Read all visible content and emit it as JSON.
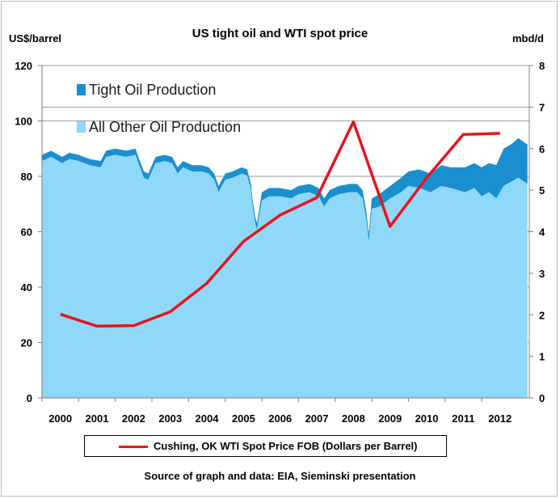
{
  "title": "US tight oil and WTI spot price",
  "y_left_unit": "US$/barrel",
  "y_right_unit": "mbd/d",
  "source": "Source of graph and data: EIA, Sieminski presentation",
  "colors": {
    "tight_oil": "#1a8fd0",
    "other_oil": "#8fd8fa",
    "wti": "#e8141a"
  },
  "chart_data": {
    "type": "area",
    "title": "US tight oil and WTI spot price",
    "xlabel": "",
    "ylabel_left": "US$/barrel",
    "ylabel_right": "mbd/d",
    "ylim_left": [
      0,
      120
    ],
    "ylim_right": [
      0,
      8
    ],
    "yticks_left": [
      "0",
      "20",
      "40",
      "60",
      "80",
      "100",
      "120"
    ],
    "yticks_right": [
      "0",
      "1",
      "2",
      "3",
      "4",
      "5",
      "6",
      "7",
      "8"
    ],
    "x_categories": [
      "2000",
      "2001",
      "2002",
      "2003",
      "2004",
      "2005",
      "2006",
      "2007",
      "2008",
      "2009",
      "2010",
      "2011",
      "2012"
    ],
    "xlim": [
      2000.0,
      2013.3
    ],
    "grid": true,
    "inner_legend": [
      {
        "name": "Tight Oil Production",
        "color": "#1a8fd0"
      },
      {
        "name": "All Other Oil Production",
        "color": "#8fd8fa"
      }
    ],
    "series": [
      {
        "name": "All Other Oil Production",
        "axis": "right",
        "x": [
          2000.0,
          2000.25,
          2000.55,
          2000.75,
          2001.0,
          2001.3,
          2001.6,
          2001.75,
          2002.0,
          2002.3,
          2002.55,
          2002.65,
          2002.78,
          2002.9,
          2003.1,
          2003.35,
          2003.55,
          2003.7,
          2003.85,
          2004.1,
          2004.35,
          2004.55,
          2004.7,
          2004.82,
          2005.0,
          2005.2,
          2005.45,
          2005.6,
          2005.7,
          2005.75,
          2005.82,
          2005.87,
          2006.0,
          2006.2,
          2006.5,
          2006.8,
          2007.0,
          2007.3,
          2007.55,
          2007.7,
          2007.85,
          2008.1,
          2008.4,
          2008.6,
          2008.75,
          2008.85,
          2008.92,
          2009.0,
          2009.2,
          2009.5,
          2009.8,
          2010.0,
          2010.3,
          2010.6,
          2010.9,
          2011.15,
          2011.35,
          2011.55,
          2011.8,
          2012.0,
          2012.2,
          2012.4,
          2012.6,
          2012.8,
          2013.0,
          2013.25
        ],
        "values": [
          5.7,
          5.8,
          5.65,
          5.75,
          5.7,
          5.6,
          5.55,
          5.8,
          5.85,
          5.8,
          5.85,
          5.6,
          5.3,
          5.25,
          5.65,
          5.7,
          5.65,
          5.4,
          5.55,
          5.45,
          5.45,
          5.4,
          5.25,
          4.95,
          5.25,
          5.3,
          5.4,
          5.35,
          5.0,
          4.6,
          4.2,
          4.05,
          4.75,
          4.85,
          4.85,
          4.8,
          4.9,
          4.95,
          4.85,
          4.6,
          4.8,
          4.9,
          4.95,
          4.95,
          4.8,
          4.3,
          3.75,
          4.55,
          4.6,
          4.8,
          4.95,
          5.1,
          5.05,
          4.95,
          5.1,
          5.05,
          5.0,
          4.95,
          5.05,
          4.85,
          4.95,
          4.8,
          5.1,
          5.2,
          5.3,
          5.15
        ]
      },
      {
        "name": "Tight Oil Production",
        "axis": "right",
        "x": [
          2000.0,
          2000.25,
          2000.55,
          2000.75,
          2001.0,
          2001.3,
          2001.6,
          2001.75,
          2002.0,
          2002.3,
          2002.55,
          2002.65,
          2002.78,
          2002.9,
          2003.1,
          2003.35,
          2003.55,
          2003.7,
          2003.85,
          2004.1,
          2004.35,
          2004.55,
          2004.7,
          2004.82,
          2005.0,
          2005.2,
          2005.45,
          2005.6,
          2005.7,
          2005.75,
          2005.82,
          2005.87,
          2006.0,
          2006.2,
          2006.5,
          2006.8,
          2007.0,
          2007.3,
          2007.55,
          2007.7,
          2007.85,
          2008.1,
          2008.4,
          2008.6,
          2008.75,
          2008.85,
          2008.92,
          2009.0,
          2009.2,
          2009.5,
          2009.8,
          2010.0,
          2010.3,
          2010.6,
          2010.9,
          2011.15,
          2011.35,
          2011.55,
          2011.8,
          2012.0,
          2012.2,
          2012.4,
          2012.6,
          2012.8,
          2013.0,
          2013.25
        ],
        "values": [
          0.15,
          0.15,
          0.15,
          0.15,
          0.15,
          0.15,
          0.15,
          0.15,
          0.15,
          0.15,
          0.15,
          0.15,
          0.15,
          0.15,
          0.15,
          0.15,
          0.15,
          0.15,
          0.15,
          0.15,
          0.15,
          0.15,
          0.15,
          0.15,
          0.15,
          0.15,
          0.15,
          0.15,
          0.15,
          0.15,
          0.15,
          0.15,
          0.2,
          0.2,
          0.2,
          0.2,
          0.2,
          0.2,
          0.2,
          0.2,
          0.2,
          0.2,
          0.2,
          0.2,
          0.2,
          0.2,
          0.2,
          0.25,
          0.3,
          0.3,
          0.35,
          0.35,
          0.45,
          0.45,
          0.5,
          0.5,
          0.55,
          0.6,
          0.6,
          0.7,
          0.7,
          0.8,
          0.9,
          0.9,
          0.95,
          0.95
        ]
      },
      {
        "name": "Cushing, OK WTI Spot Price FOB (Dollars per Barrel)",
        "type": "line",
        "axis": "left",
        "x": [
          "2000",
          "2001",
          "2002",
          "2003",
          "2004",
          "2005",
          "2006",
          "2007",
          "2008",
          "2009",
          "2010",
          "2011",
          "2012"
        ],
        "values": [
          30.2,
          25.9,
          26.1,
          31.1,
          41.4,
          56.5,
          66.0,
          72.3,
          99.7,
          61.9,
          79.5,
          95.1,
          95.5
        ]
      }
    ]
  }
}
